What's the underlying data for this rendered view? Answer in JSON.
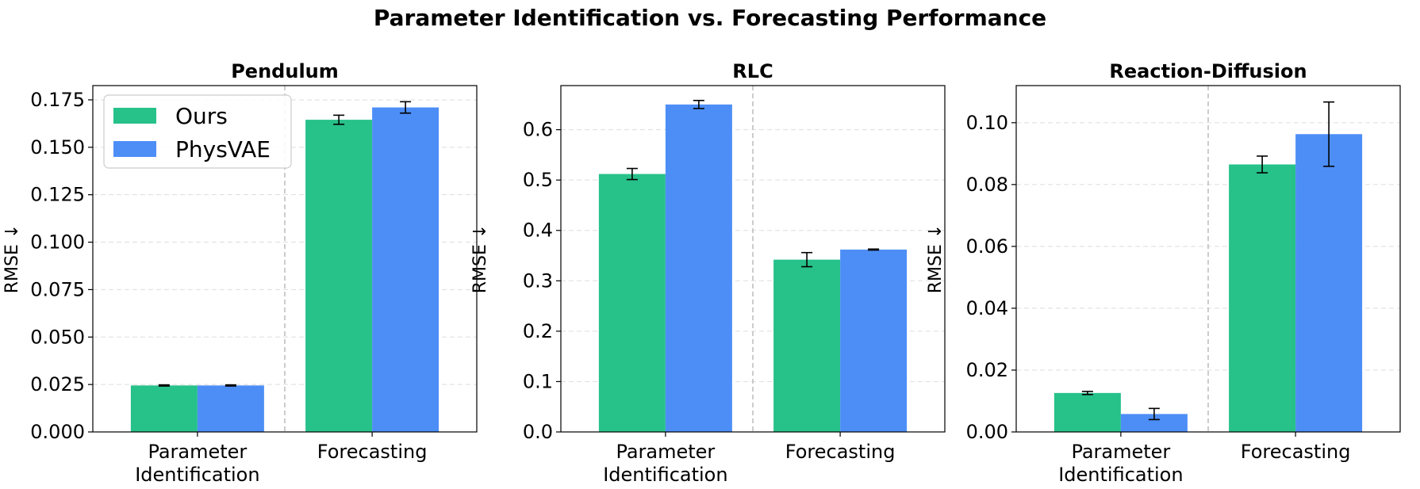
{
  "colors": {
    "ours": "#27c18a",
    "physvae": "#4d8ef6",
    "grid": "#dddddd",
    "separator": "#bbbbbb",
    "error_bar": "#000000"
  },
  "figure": {
    "suptitle": "Parameter Identification vs. Forecasting Performance"
  },
  "chart_data": [
    {
      "type": "bar",
      "title": "Pendulum",
      "xlabel": "",
      "ylabel": "RMSE ↓",
      "categories": [
        [
          "Parameter",
          "Identification"
        ],
        [
          "Forecasting"
        ]
      ],
      "ylim": [
        0,
        0.1825
      ],
      "yticks": [
        "0.000",
        "0.025",
        "0.050",
        "0.075",
        "0.100",
        "0.125",
        "0.150",
        "0.175"
      ],
      "ytick_values": [
        0,
        0.025,
        0.05,
        0.075,
        0.1,
        0.125,
        0.15,
        0.175
      ],
      "legend": {
        "show": true,
        "location": "upper-left"
      },
      "series": [
        {
          "name": "Ours",
          "values": [
            0.0245,
            0.1645
          ],
          "errors": [
            0.0003,
            0.0024
          ]
        },
        {
          "name": "PhysVAE",
          "values": [
            0.0245,
            0.171
          ],
          "errors": [
            0.0003,
            0.003
          ]
        }
      ]
    },
    {
      "type": "bar",
      "title": "RLC",
      "xlabel": "",
      "ylabel": "RMSE ↓",
      "categories": [
        [
          "Parameter",
          "Identification"
        ],
        [
          "Forecasting"
        ]
      ],
      "ylim": [
        0,
        0.6875
      ],
      "yticks": [
        "0.0",
        "0.1",
        "0.2",
        "0.3",
        "0.4",
        "0.5",
        "0.6"
      ],
      "ytick_values": [
        0,
        0.1,
        0.2,
        0.3,
        0.4,
        0.5,
        0.6
      ],
      "legend": {
        "show": false
      },
      "series": [
        {
          "name": "Ours",
          "values": [
            0.512,
            0.342
          ],
          "errors": [
            0.011,
            0.014
          ]
        },
        {
          "name": "PhysVAE",
          "values": [
            0.65,
            0.362
          ],
          "errors": [
            0.008,
            0.001
          ]
        }
      ]
    },
    {
      "type": "bar",
      "title": "Reaction-Diffusion",
      "xlabel": "",
      "ylabel": "RMSE ↓",
      "categories": [
        [
          "Parameter",
          "Identification"
        ],
        [
          "Forecasting"
        ]
      ],
      "ylim": [
        0,
        0.112
      ],
      "yticks": [
        "0.00",
        "0.02",
        "0.04",
        "0.06",
        "0.08",
        "0.10"
      ],
      "ytick_values": [
        0,
        0.02,
        0.04,
        0.06,
        0.08,
        0.1
      ],
      "legend": {
        "show": false
      },
      "series": [
        {
          "name": "Ours",
          "values": [
            0.0126,
            0.0865
          ],
          "errors": [
            0.0005,
            0.0027
          ]
        },
        {
          "name": "PhysVAE",
          "values": [
            0.0058,
            0.0963
          ],
          "errors": [
            0.0018,
            0.0104
          ]
        }
      ]
    }
  ]
}
